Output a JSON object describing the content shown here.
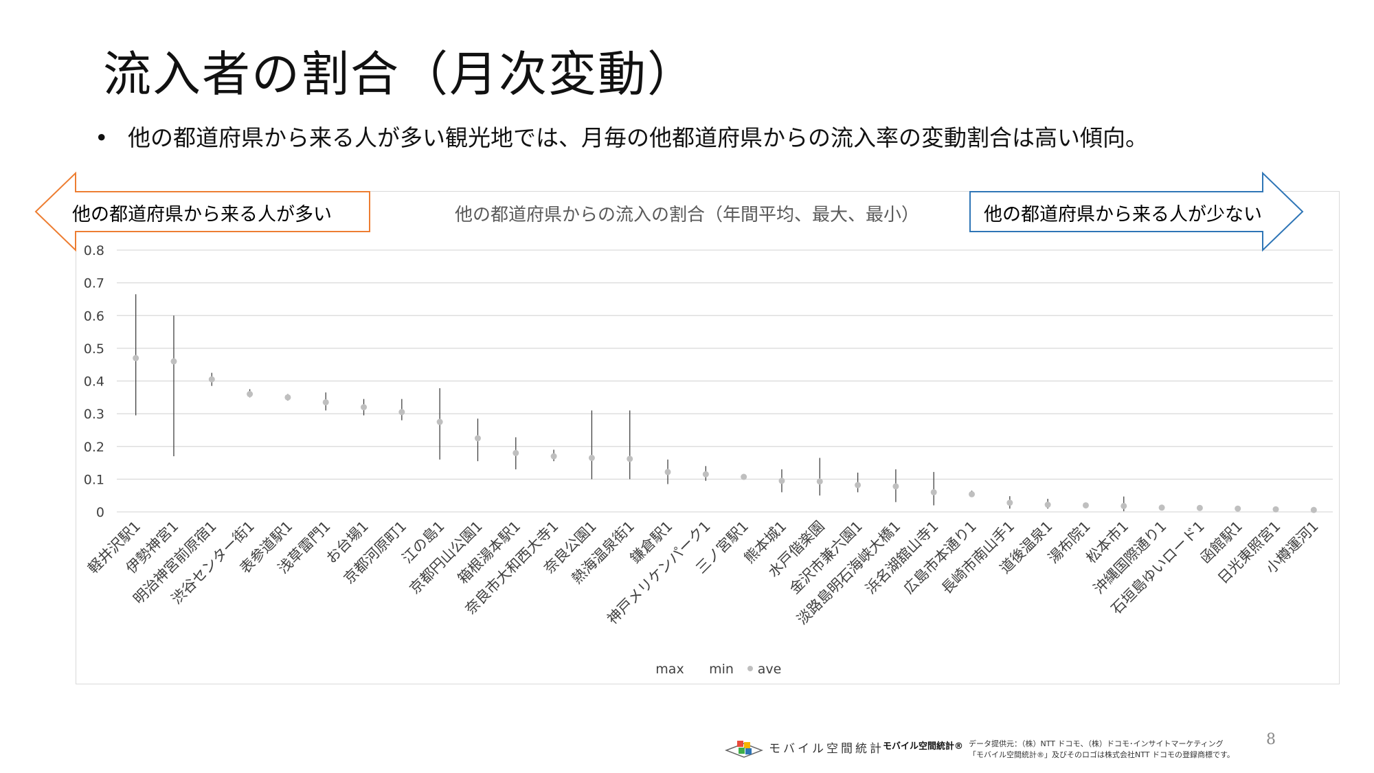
{
  "slide": {
    "title": "流入者の割合（月次変動）",
    "bullet_marker": "•",
    "bullet": "他の都道府県から来る人が多い観光地では、月毎の他都道府県からの流入率の変動割合は高い傾向。",
    "page_number": "8"
  },
  "arrows": {
    "left_text": "他の都道府県から来る人が多い",
    "left_color": "#ED7D31",
    "right_text": "他の都道府県から来る人が少ない",
    "right_color": "#2E75B6"
  },
  "footer": {
    "logo_text": "モバイル空間統計",
    "brand": "モバイル空間統計®",
    "credit_line1": "データ提供元：（株）NTT ドコモ、（株）ドコモ･インサイトマーケティング",
    "credit_line2": "「モバイル空間統計®」及びそのロゴは株式会社NTT ドコモの登録商標です。"
  },
  "chart_data": {
    "type": "scatter",
    "title": "他の都道府県からの流入の割合（年間平均、最大、最小）",
    "ylim": [
      0,
      0.8
    ],
    "yticks": [
      0,
      0.1,
      0.2,
      0.3,
      0.4,
      0.5,
      0.6,
      0.7,
      0.8
    ],
    "grid": true,
    "legend": {
      "placement": "bottom",
      "entries": [
        "max",
        "min",
        "ave"
      ]
    },
    "series_colors": {
      "range": "#404040",
      "ave": "#BFBFBF",
      "grid": "#D9D9D9"
    },
    "categories": [
      "軽井沢駅1",
      "伊勢神宮1",
      "明治神宮前原宿1",
      "渋谷センター街1",
      "表参道駅1",
      "浅草雷門1",
      "お台場1",
      "京都河原町1",
      "江の島1",
      "京都円山公園1",
      "箱根湯本駅1",
      "奈良市大和西大寺1",
      "奈良公園1",
      "熱海温泉街1",
      "鎌倉駅1",
      "神戸メリケンパーク1",
      "三ノ宮駅1",
      "熊本城1",
      "水戸偕楽園",
      "金沢市兼六園1",
      "淡路島明石海峡大橋1",
      "浜名湖舘山寺1",
      "広島市本通り1",
      "長崎市南山手1",
      "道後温泉1",
      "湯布院1",
      "松本市1",
      "沖縄国際通り1",
      "石垣島ゆいロード1",
      "函館駅1",
      "日光東照宮1",
      "小樽運河1"
    ],
    "series": [
      {
        "name": "max",
        "values": [
          0.665,
          0.6,
          0.425,
          0.375,
          0.36,
          0.365,
          0.345,
          0.345,
          0.378,
          0.285,
          0.228,
          0.19,
          0.31,
          0.31,
          0.16,
          0.14,
          0.115,
          0.13,
          0.165,
          0.12,
          0.13,
          0.122,
          0.065,
          0.048,
          0.04,
          0.028,
          0.047,
          0.016,
          0.016,
          0.014,
          0.014,
          0.011
        ]
      },
      {
        "name": "min",
        "values": [
          0.295,
          0.17,
          0.385,
          0.35,
          0.34,
          0.31,
          0.295,
          0.28,
          0.16,
          0.155,
          0.13,
          0.155,
          0.1,
          0.1,
          0.085,
          0.095,
          0.1,
          0.06,
          0.05,
          0.06,
          0.03,
          0.02,
          0.048,
          0.01,
          0.01,
          0.015,
          0.002,
          0.011,
          0.01,
          0.008,
          0.004,
          0.003
        ]
      },
      {
        "name": "ave",
        "values": [
          0.47,
          0.46,
          0.405,
          0.36,
          0.35,
          0.335,
          0.32,
          0.305,
          0.275,
          0.225,
          0.18,
          0.17,
          0.165,
          0.162,
          0.122,
          0.115,
          0.107,
          0.095,
          0.093,
          0.082,
          0.078,
          0.06,
          0.054,
          0.028,
          0.022,
          0.02,
          0.018,
          0.013,
          0.012,
          0.01,
          0.008,
          0.006
        ]
      }
    ]
  }
}
